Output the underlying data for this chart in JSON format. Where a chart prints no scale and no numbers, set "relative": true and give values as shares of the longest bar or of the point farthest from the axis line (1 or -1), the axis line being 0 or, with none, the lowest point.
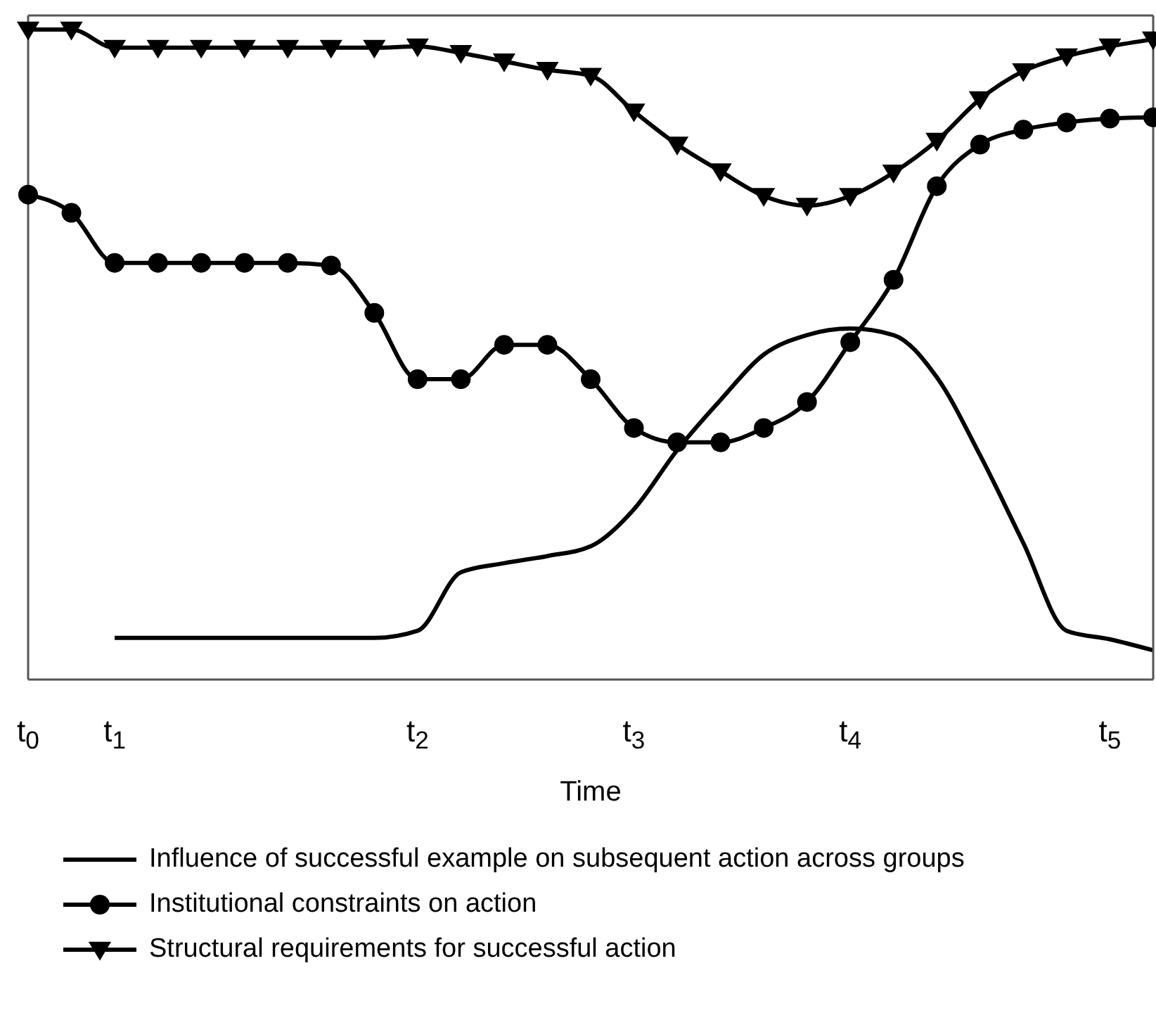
{
  "chart_data": {
    "type": "line",
    "xlabel": "Time",
    "relative": true,
    "legend": "bottom",
    "grid": false,
    "line_style": "solid",
    "categories": [
      "t$_{0}$",
      null,
      "t$_{1}$",
      null,
      null,
      null,
      null,
      null,
      null,
      "t$_{2}$",
      null,
      null,
      null,
      null,
      "t$_{3}$",
      null,
      null,
      null,
      null,
      "t$_{4}$",
      null,
      null,
      null,
      null,
      null,
      "t$_{5}$",
      null
    ],
    "series": [
      {
        "name": "Influence of successful example on subsequent action across groups",
        "color": "#000000",
        "marker": "none",
        "values": [
          null,
          null,
          0.064,
          0.064,
          0.064,
          0.064,
          0.064,
          0.064,
          0.064,
          0.075,
          0.165,
          0.179,
          0.19,
          0.205,
          0.262,
          0.353,
          0.43,
          0.5,
          0.53,
          0.54,
          0.53,
          0.465,
          0.345,
          0.21,
          0.075,
          0.062,
          0.045
        ]
      },
      {
        "name": "Institutional constraints on action",
        "color": "#000000",
        "marker": "circle",
        "values": [
          0.746,
          0.718,
          0.641,
          0.641,
          0.641,
          0.641,
          0.641,
          0.637,
          0.564,
          0.462,
          0.462,
          0.515,
          0.515,
          0.462,
          0.387,
          0.365,
          0.365,
          0.387,
          0.427,
          0.519,
          0.615,
          0.759,
          0.823,
          0.846,
          0.857,
          0.863,
          0.865
        ]
      },
      {
        "name": "Structural requirements for successful action",
        "color": "#000000",
        "marker": "triangle",
        "values": [
          1,
          1,
          0.972,
          0.972,
          0.972,
          0.972,
          0.972,
          0.972,
          0.972,
          0.974,
          0.964,
          0.951,
          0.938,
          0.929,
          0.874,
          0.823,
          0.782,
          0.744,
          0.729,
          0.744,
          0.78,
          0.829,
          0.893,
          0.936,
          0.959,
          0.974,
          0.985
        ]
      }
    ]
  }
}
